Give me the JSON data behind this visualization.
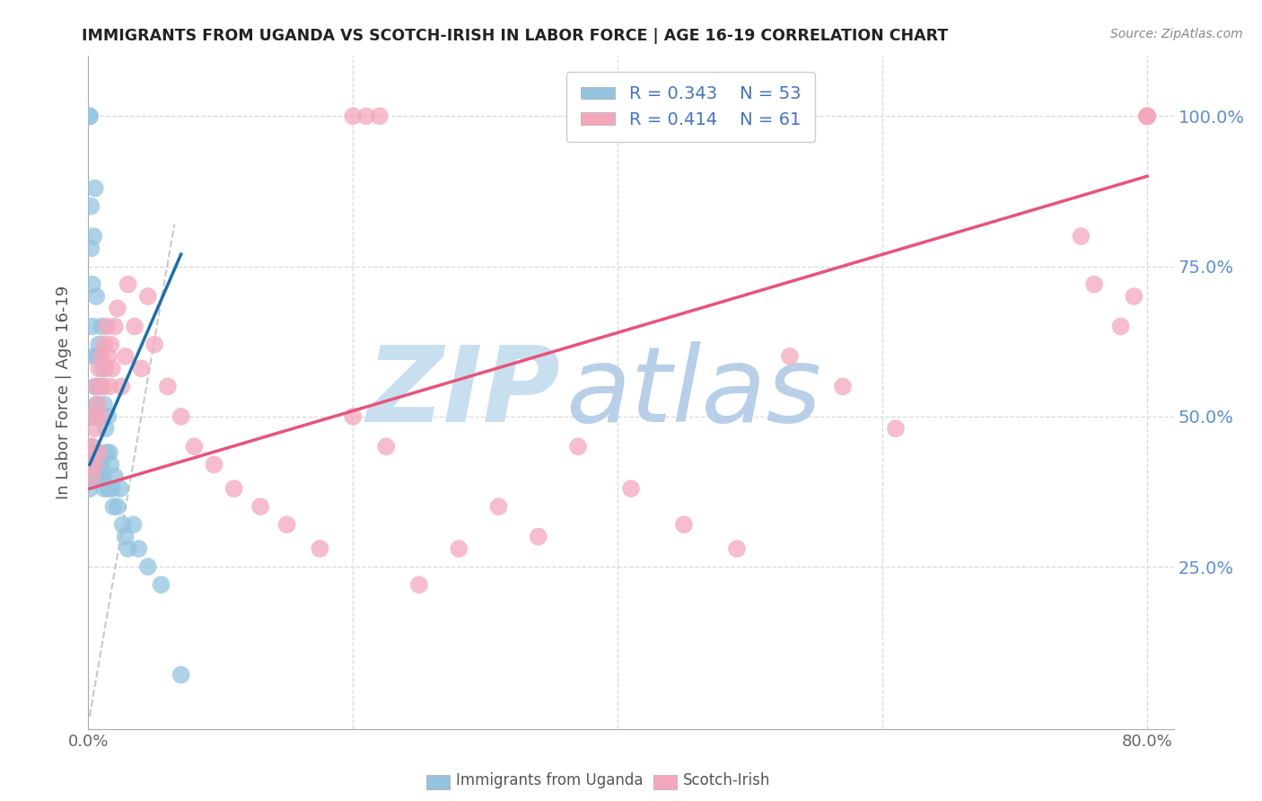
{
  "title": "IMMIGRANTS FROM UGANDA VS SCOTCH-IRISH IN LABOR FORCE | AGE 16-19 CORRELATION CHART",
  "source": "Source: ZipAtlas.com",
  "ylabel": "In Labor Force | Age 16-19",
  "xlim": [
    0.0,
    0.82
  ],
  "ylim": [
    -0.02,
    1.1
  ],
  "xtick_vals": [
    0.0,
    0.2,
    0.4,
    0.6,
    0.8
  ],
  "xticklabels": [
    "0.0%",
    "",
    "",
    "",
    "80.0%"
  ],
  "ytick_vals": [
    0.25,
    0.5,
    0.75,
    1.0
  ],
  "ytick_labels_right": [
    "25.0%",
    "50.0%",
    "75.0%",
    "100.0%"
  ],
  "color_uganda": "#93c4e0",
  "color_scotch": "#f4a7bb",
  "color_uganda_line": "#1a6faf",
  "color_scotch_line": "#e8537a",
  "color_ref_line": "#bbbbbb",
  "color_grid": "#d8d8d8",
  "color_right_ytick": "#5b8dd9",
  "watermark_zip_color": "#c8dff0",
  "watermark_atlas_color": "#b8cfe8",
  "legend_text_color": "#4472c4",
  "bottom_legend_uganda": "Immigrants from Uganda",
  "bottom_legend_scotch": "Scotch-Irish",
  "uganda_x": [
    0.001,
    0.001,
    0.001,
    0.001,
    0.002,
    0.002,
    0.002,
    0.002,
    0.002,
    0.003,
    0.003,
    0.003,
    0.003,
    0.004,
    0.004,
    0.004,
    0.005,
    0.005,
    0.005,
    0.006,
    0.006,
    0.006,
    0.007,
    0.007,
    0.008,
    0.008,
    0.009,
    0.009,
    0.01,
    0.01,
    0.011,
    0.011,
    0.012,
    0.012,
    0.013,
    0.014,
    0.015,
    0.015,
    0.016,
    0.017,
    0.018,
    0.019,
    0.02,
    0.022,
    0.024,
    0.026,
    0.028,
    0.03,
    0.034,
    0.038,
    0.045,
    0.055,
    0.07
  ],
  "uganda_y": [
    1.0,
    1.0,
    0.42,
    0.38,
    0.85,
    0.78,
    0.5,
    0.45,
    0.4,
    0.72,
    0.65,
    0.5,
    0.42,
    0.8,
    0.6,
    0.44,
    0.88,
    0.55,
    0.42,
    0.7,
    0.52,
    0.4,
    0.6,
    0.44,
    0.62,
    0.42,
    0.55,
    0.4,
    0.65,
    0.42,
    0.58,
    0.4,
    0.52,
    0.38,
    0.48,
    0.44,
    0.5,
    0.38,
    0.44,
    0.42,
    0.38,
    0.35,
    0.4,
    0.35,
    0.38,
    0.32,
    0.3,
    0.28,
    0.32,
    0.28,
    0.25,
    0.22,
    0.07
  ],
  "scotch_x": [
    0.001,
    0.002,
    0.003,
    0.003,
    0.004,
    0.005,
    0.005,
    0.006,
    0.007,
    0.008,
    0.008,
    0.009,
    0.01,
    0.011,
    0.012,
    0.013,
    0.014,
    0.015,
    0.016,
    0.017,
    0.018,
    0.02,
    0.022,
    0.025,
    0.028,
    0.03,
    0.035,
    0.04,
    0.045,
    0.05,
    0.06,
    0.07,
    0.08,
    0.095,
    0.11,
    0.13,
    0.15,
    0.175,
    0.2,
    0.225,
    0.25,
    0.28,
    0.31,
    0.34,
    0.37,
    0.41,
    0.45,
    0.49,
    0.53,
    0.57,
    0.61,
    0.2,
    0.21,
    0.22,
    0.75,
    0.76,
    0.78,
    0.79,
    0.8,
    0.8,
    0.8
  ],
  "scotch_y": [
    0.42,
    0.44,
    0.45,
    0.4,
    0.5,
    0.48,
    0.42,
    0.55,
    0.52,
    0.58,
    0.44,
    0.5,
    0.6,
    0.55,
    0.62,
    0.58,
    0.65,
    0.6,
    0.55,
    0.62,
    0.58,
    0.65,
    0.68,
    0.55,
    0.6,
    0.72,
    0.65,
    0.58,
    0.7,
    0.62,
    0.55,
    0.5,
    0.45,
    0.42,
    0.38,
    0.35,
    0.32,
    0.28,
    0.5,
    0.45,
    0.22,
    0.28,
    0.35,
    0.3,
    0.45,
    0.38,
    0.32,
    0.28,
    0.6,
    0.55,
    0.48,
    1.0,
    1.0,
    1.0,
    0.8,
    0.72,
    0.65,
    0.7,
    1.0,
    1.0,
    1.0
  ],
  "ug_line_x": [
    0.001,
    0.07
  ],
  "ug_line_y": [
    0.42,
    0.77
  ],
  "sc_line_x": [
    0.001,
    0.8
  ],
  "sc_line_y": [
    0.38,
    0.9
  ],
  "ref_line_x": [
    0.001,
    0.065
  ],
  "ref_line_y": [
    0.001,
    0.82
  ]
}
